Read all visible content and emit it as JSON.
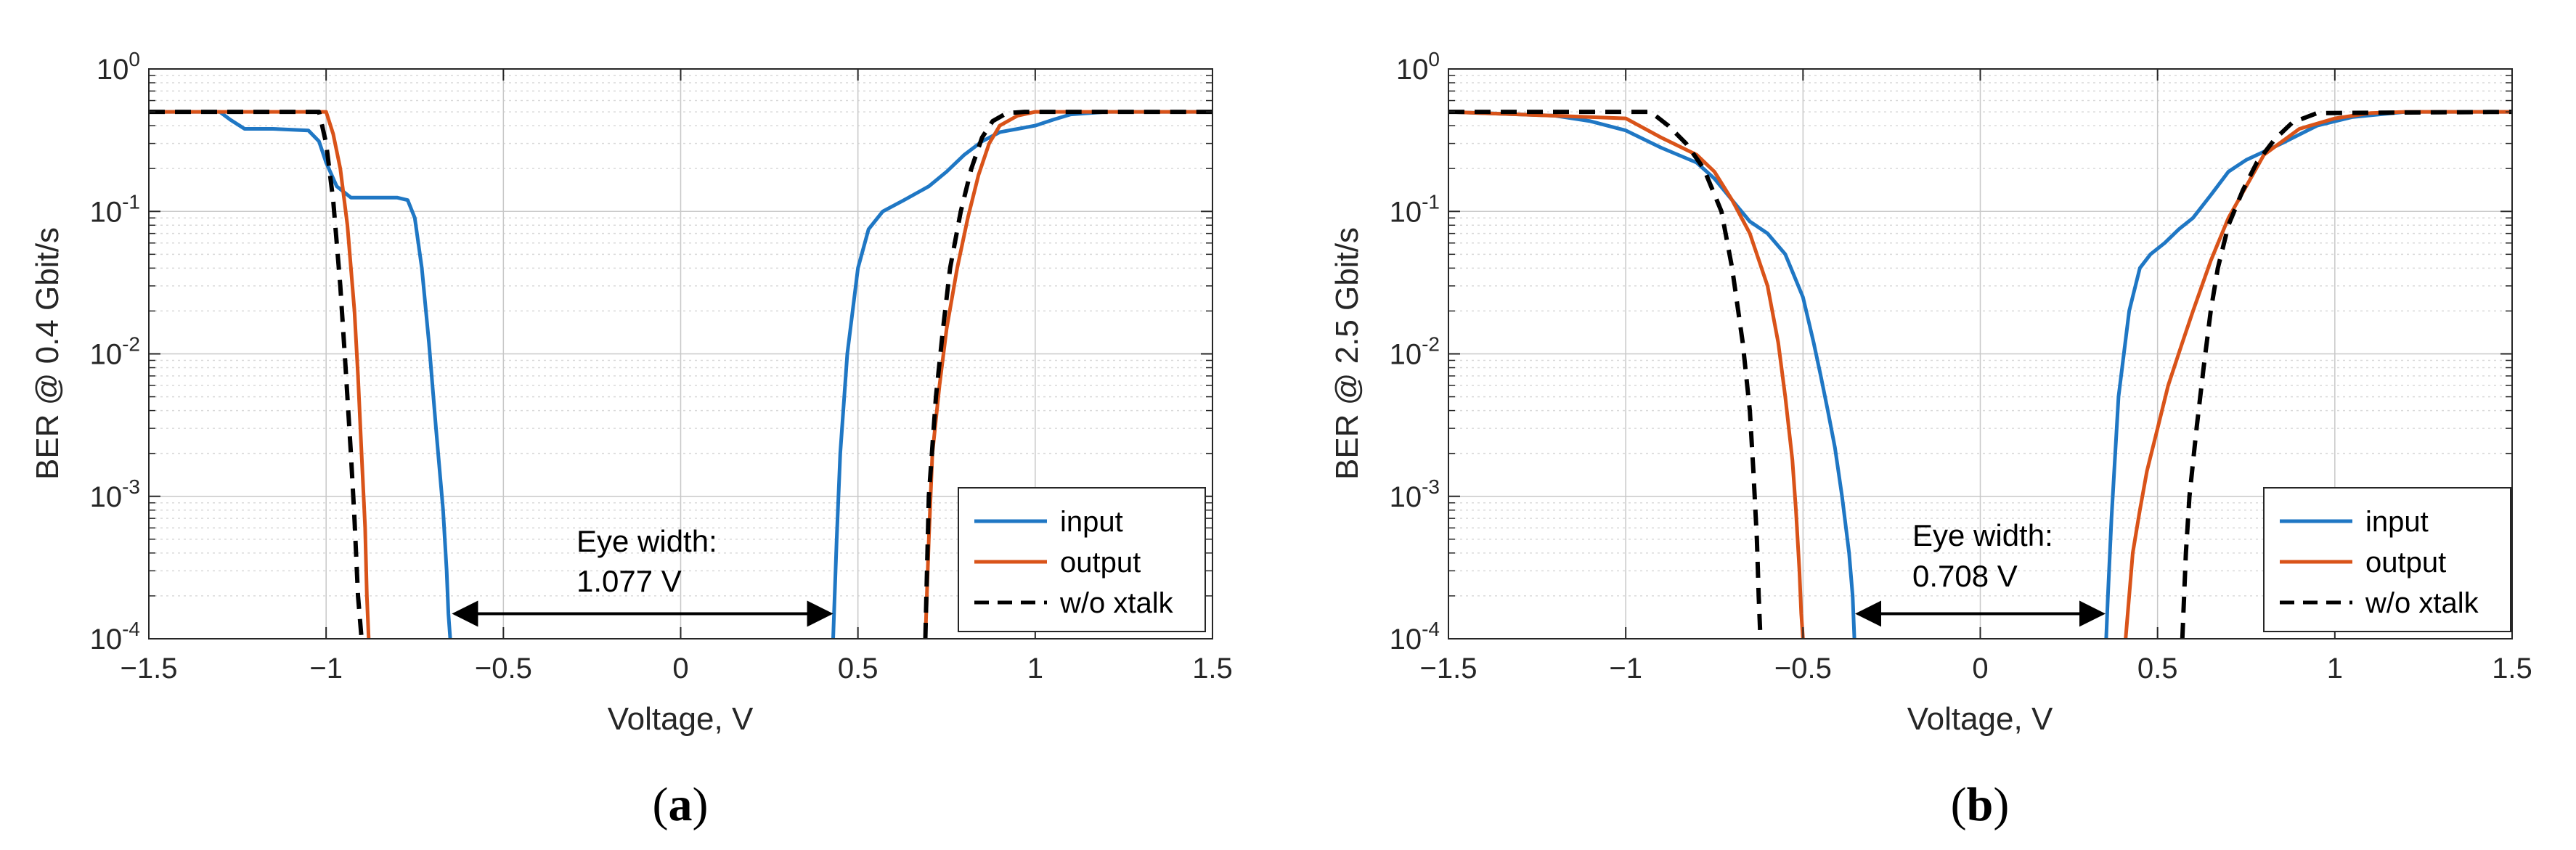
{
  "chart_data": [
    {
      "type": "line",
      "panel_label": "a",
      "xlabel": "Voltage, V",
      "ylabel": "BER @ 0.4 Gbit/s",
      "yscale": "log",
      "xlim": [
        -1.5,
        1.5
      ],
      "ylim": [
        0.0001,
        1
      ],
      "xticks": [
        -1.5,
        -1,
        -0.5,
        0,
        0.5,
        1,
        1.5
      ],
      "xtick_labels": [
        "−1.5",
        "−1",
        "−0.5",
        "0",
        "0.5",
        "1",
        "1.5"
      ],
      "yticks": [
        0.0001,
        0.001,
        0.01,
        0.1,
        1
      ],
      "ytick_bases": [
        "10",
        "10",
        "10",
        "10",
        "10"
      ],
      "ytick_exps": [
        "-4",
        "-3",
        "-2",
        "-1",
        "0"
      ],
      "grid": true,
      "legend_position": "bottom-right",
      "annotation": {
        "line1": "Eye width:",
        "line2": "1.077 V",
        "arrow_from": -0.646,
        "arrow_to": 0.431,
        "arrow_y": 0.00015
      },
      "series": [
        {
          "name": "input",
          "color": "#1f77c4",
          "dash": "solid",
          "x": [
            -1.5,
            -1.3,
            -1.27,
            -1.23,
            -1.15,
            -1.05,
            -1.02,
            -1.0,
            -0.97,
            -0.93,
            -0.9,
            -0.85,
            -0.8,
            -0.77,
            -0.75,
            -0.73,
            -0.71,
            -0.69,
            -0.67,
            -0.66,
            -0.655,
            -0.65
          ],
          "y": [
            0.5,
            0.5,
            0.44,
            0.38,
            0.38,
            0.37,
            0.31,
            0.22,
            0.15,
            0.125,
            0.125,
            0.125,
            0.125,
            0.12,
            0.09,
            0.04,
            0.012,
            0.003,
            0.0008,
            0.0003,
            0.00015,
            0.0001
          ]
        },
        {
          "name": "input",
          "color": "#1f77c4",
          "dash": "solid",
          "x": [
            0.43,
            0.44,
            0.45,
            0.47,
            0.5,
            0.53,
            0.57,
            0.63,
            0.7,
            0.75,
            0.8,
            0.85,
            0.9,
            1.0,
            1.05,
            1.1,
            1.2,
            1.5
          ],
          "y": [
            0.0001,
            0.0005,
            0.002,
            0.01,
            0.04,
            0.075,
            0.1,
            0.12,
            0.15,
            0.19,
            0.25,
            0.31,
            0.36,
            0.4,
            0.44,
            0.48,
            0.5,
            0.5
          ]
        },
        {
          "name": "output",
          "color": "#d95319",
          "dash": "solid",
          "x": [
            -1.5,
            -1.0,
            -0.98,
            -0.96,
            -0.94,
            -0.92,
            -0.91,
            -0.9,
            -0.89,
            -0.885,
            -0.88
          ],
          "y": [
            0.5,
            0.5,
            0.35,
            0.2,
            0.08,
            0.02,
            0.007,
            0.002,
            0.0006,
            0.0002,
            0.0001
          ]
        },
        {
          "name": "output",
          "color": "#d95319",
          "dash": "solid",
          "x": [
            0.69,
            0.7,
            0.71,
            0.73,
            0.75,
            0.78,
            0.81,
            0.84,
            0.87,
            0.9,
            0.95,
            1.0,
            1.5
          ],
          "y": [
            0.0001,
            0.0005,
            0.002,
            0.006,
            0.015,
            0.04,
            0.09,
            0.18,
            0.3,
            0.4,
            0.47,
            0.5,
            0.5
          ]
        },
        {
          "name": "w/o xtalk",
          "color": "#000000",
          "dash": "dashed",
          "x": [
            -1.5,
            -1.02,
            -1.0,
            -0.98,
            -0.96,
            -0.945,
            -0.93,
            -0.92,
            -0.91,
            -0.9
          ],
          "y": [
            0.5,
            0.5,
            0.3,
            0.12,
            0.03,
            0.008,
            0.002,
            0.0007,
            0.0002,
            0.0001
          ]
        },
        {
          "name": "w/o xtalk",
          "color": "#000000",
          "dash": "dashed",
          "x": [
            0.69,
            0.7,
            0.72,
            0.74,
            0.76,
            0.79,
            0.82,
            0.85,
            0.88,
            0.92,
            0.97,
            1.5
          ],
          "y": [
            0.0001,
            0.001,
            0.005,
            0.015,
            0.04,
            0.1,
            0.2,
            0.33,
            0.43,
            0.49,
            0.5,
            0.5
          ]
        }
      ],
      "legend": [
        {
          "name": "input",
          "color": "#1f77c4",
          "dash": "solid"
        },
        {
          "name": "output",
          "color": "#d95319",
          "dash": "solid"
        },
        {
          "name": "w/o xtalk",
          "color": "#000000",
          "dash": "dashed"
        }
      ]
    },
    {
      "type": "line",
      "panel_label": "b",
      "xlabel": "Voltage, V",
      "ylabel": "BER @ 2.5 Gbit/s",
      "yscale": "log",
      "xlim": [
        -1.5,
        1.5
      ],
      "ylim": [
        0.0001,
        1
      ],
      "xticks": [
        -1.5,
        -1,
        -0.5,
        0,
        0.5,
        1,
        1.5
      ],
      "xtick_labels": [
        "−1.5",
        "−1",
        "−0.5",
        "0",
        "0.5",
        "1",
        "1.5"
      ],
      "yticks": [
        0.0001,
        0.001,
        0.01,
        0.1,
        1
      ],
      "ytick_bases": [
        "10",
        "10",
        "10",
        "10",
        "10"
      ],
      "ytick_exps": [
        "-4",
        "-3",
        "-2",
        "-1",
        "0"
      ],
      "grid": true,
      "legend_position": "bottom-right",
      "annotation": {
        "line1": "Eye width:",
        "line2": "0.708 V",
        "arrow_from": -0.354,
        "arrow_to": 0.354,
        "arrow_y": 0.00015
      },
      "series": [
        {
          "name": "input",
          "color": "#1f77c4",
          "dash": "solid",
          "x": [
            -1.5,
            -1.2,
            -1.1,
            -1.0,
            -0.9,
            -0.8,
            -0.75,
            -0.7,
            -0.65,
            -0.6,
            -0.55,
            -0.5,
            -0.47,
            -0.45,
            -0.43,
            -0.41,
            -0.39,
            -0.37,
            -0.36,
            -0.355
          ],
          "y": [
            0.5,
            0.47,
            0.43,
            0.37,
            0.28,
            0.22,
            0.17,
            0.12,
            0.085,
            0.07,
            0.05,
            0.025,
            0.012,
            0.007,
            0.004,
            0.0022,
            0.001,
            0.0004,
            0.0002,
            0.0001
          ]
        },
        {
          "name": "input",
          "color": "#1f77c4",
          "dash": "solid",
          "x": [
            0.355,
            0.36,
            0.37,
            0.39,
            0.42,
            0.45,
            0.48,
            0.52,
            0.56,
            0.6,
            0.65,
            0.7,
            0.75,
            0.85,
            0.95,
            1.05,
            1.2,
            1.5
          ],
          "y": [
            0.0001,
            0.0002,
            0.0007,
            0.005,
            0.02,
            0.04,
            0.05,
            0.06,
            0.075,
            0.09,
            0.13,
            0.19,
            0.23,
            0.3,
            0.4,
            0.46,
            0.5,
            0.5
          ]
        },
        {
          "name": "output",
          "color": "#d95319",
          "dash": "solid",
          "x": [
            -1.5,
            -1.0,
            -0.9,
            -0.8,
            -0.75,
            -0.7,
            -0.65,
            -0.6,
            -0.57,
            -0.55,
            -0.53,
            -0.52,
            -0.51,
            -0.505,
            -0.5
          ],
          "y": [
            0.5,
            0.45,
            0.33,
            0.25,
            0.19,
            0.12,
            0.07,
            0.03,
            0.012,
            0.005,
            0.0018,
            0.0008,
            0.0003,
            0.00015,
            0.0001
          ]
        },
        {
          "name": "output",
          "color": "#d95319",
          "dash": "solid",
          "x": [
            0.41,
            0.42,
            0.43,
            0.45,
            0.47,
            0.5,
            0.53,
            0.57,
            0.6,
            0.65,
            0.7,
            0.75,
            0.8,
            0.9,
            1.0,
            1.1,
            1.2,
            1.5
          ],
          "y": [
            0.0001,
            0.0002,
            0.0004,
            0.0008,
            0.0015,
            0.003,
            0.006,
            0.012,
            0.02,
            0.045,
            0.09,
            0.15,
            0.25,
            0.38,
            0.45,
            0.49,
            0.5,
            0.5
          ]
        },
        {
          "name": "w/o xtalk",
          "color": "#000000",
          "dash": "dashed",
          "x": [
            -1.5,
            -0.93,
            -0.88,
            -0.83,
            -0.78,
            -0.73,
            -0.7,
            -0.67,
            -0.65,
            -0.64,
            -0.63,
            -0.625,
            -0.62
          ],
          "y": [
            0.5,
            0.5,
            0.4,
            0.3,
            0.2,
            0.1,
            0.04,
            0.012,
            0.004,
            0.0015,
            0.0005,
            0.0002,
            0.0001
          ]
        },
        {
          "name": "w/o xtalk",
          "color": "#000000",
          "dash": "dashed",
          "x": [
            0.57,
            0.58,
            0.59,
            0.61,
            0.63,
            0.65,
            0.67,
            0.7,
            0.74,
            0.78,
            0.83,
            0.88,
            0.95,
            1.5
          ],
          "y": [
            0.0001,
            0.0004,
            0.001,
            0.003,
            0.008,
            0.02,
            0.04,
            0.08,
            0.14,
            0.22,
            0.32,
            0.42,
            0.49,
            0.5
          ]
        }
      ],
      "legend": [
        {
          "name": "input",
          "color": "#1f77c4",
          "dash": "solid"
        },
        {
          "name": "output",
          "color": "#d95319",
          "dash": "solid"
        },
        {
          "name": "w/o xtalk",
          "color": "#000000",
          "dash": "dashed"
        }
      ]
    }
  ]
}
